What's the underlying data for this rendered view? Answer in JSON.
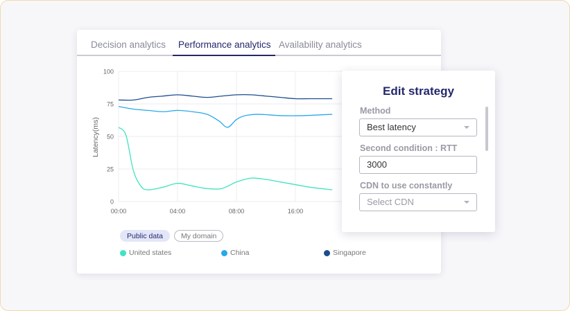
{
  "tabs": [
    {
      "label": "Decision analytics"
    },
    {
      "label": "Performance analytics"
    },
    {
      "label": "Availability analytics"
    }
  ],
  "chart_data": {
    "type": "line",
    "ylabel": "Latency(ms)",
    "ylim": [
      0,
      100
    ],
    "yticks": [
      "100",
      "75",
      "50",
      "25",
      "0"
    ],
    "xticks": [
      "00:00",
      "04:00",
      "08:00",
      "16:00"
    ],
    "grid": true,
    "legend_placement": "bottom",
    "series": [
      {
        "name": "United states",
        "color": "#3fe3c0",
        "x": [
          0,
          0.5,
          1,
          1.5,
          2,
          3,
          4,
          5,
          6,
          7,
          8,
          9,
          10,
          11,
          12,
          13,
          14.5
        ],
        "values": [
          57,
          51,
          24,
          12,
          9,
          11,
          14,
          12,
          10,
          10,
          15,
          18,
          17,
          15,
          13,
          11,
          9
        ]
      },
      {
        "name": "China",
        "color": "#2aa8e8",
        "x": [
          0,
          1,
          2,
          3,
          4,
          5,
          6,
          6.8,
          7.4,
          8,
          8.6,
          9.5,
          11,
          12.5,
          14.5
        ],
        "values": [
          73,
          71,
          70,
          69,
          70,
          69,
          67,
          62,
          57,
          63,
          66,
          67,
          66,
          66,
          67
        ]
      },
      {
        "name": "Singapore",
        "color": "#1b4c8e",
        "x": [
          0,
          1,
          2,
          3,
          4,
          5,
          6,
          7,
          8,
          9,
          10,
          11,
          12,
          13,
          14.5
        ],
        "values": [
          78,
          78,
          80,
          81,
          82,
          81,
          80,
          81,
          82,
          82,
          81,
          80,
          79,
          79,
          79
        ]
      }
    ]
  },
  "filters": {
    "public": "Public data",
    "domain": "My domain"
  },
  "panel": {
    "title": "Edit strategy",
    "method_label": "Method",
    "method_value": "Best latency",
    "second_label": "Second condition : RTT",
    "second_value": "3000",
    "cdn_label": "CDN to use constantly",
    "cdn_placeholder": "Select CDN"
  }
}
